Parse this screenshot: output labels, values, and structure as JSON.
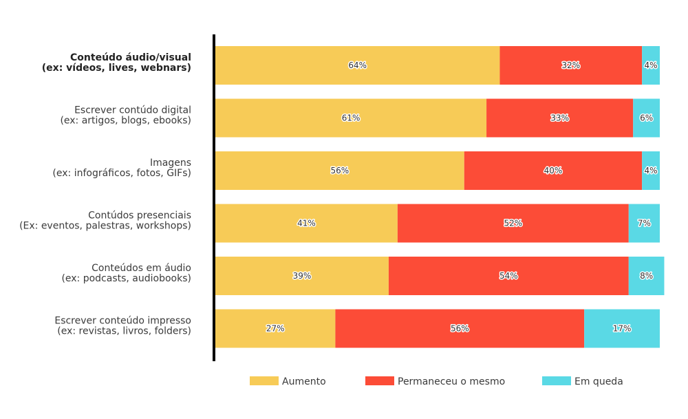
{
  "chart_data": {
    "type": "bar",
    "orientation": "horizontal",
    "stacked": true,
    "categories": [
      [
        "Conteúdo áudio/visual",
        "(ex: vídeos, lives, webnars)"
      ],
      [
        "Escrever contúdo digital",
        "(ex: artigos, blogs, ebooks)"
      ],
      [
        "Imagens",
        "(ex: infográficos, fotos, GIFs)"
      ],
      [
        "Contúdos presenciais",
        "(Ex: eventos, palestras, workshops)"
      ],
      [
        "Conteúdos em áudio",
        "(ex: podcasts, audiobooks)"
      ],
      [
        "Escrever conteúdo impresso",
        "(ex: revistas, livros, folders)"
      ]
    ],
    "series": [
      {
        "name": "Aumento",
        "color": "#F7CB57",
        "values": [
          64,
          61,
          56,
          41,
          39,
          27
        ]
      },
      {
        "name": "Permaneceu o mesmo",
        "color": "#FC4C37",
        "values": [
          32,
          33,
          40,
          52,
          54,
          56
        ]
      },
      {
        "name": "Em queda",
        "color": "#5AD9E5",
        "values": [
          4,
          6,
          4,
          7,
          8,
          17
        ]
      }
    ],
    "value_suffix": "%",
    "xlim": [
      0,
      100
    ],
    "grid": false,
    "legend_position": "bottom"
  }
}
